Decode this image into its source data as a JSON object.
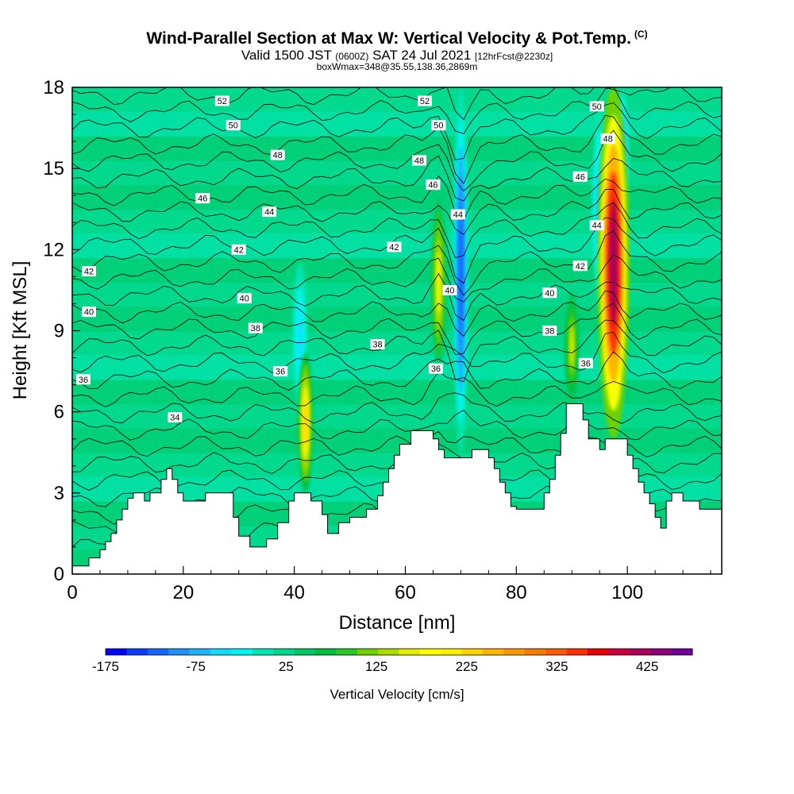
{
  "header": {
    "title": "Wind-Parallel Section at Max W: Vertical Velocity & Pot.Temp.",
    "copyright": "(C)",
    "valid_main": "Valid 1500 JST",
    "valid_z": "(0600Z)",
    "valid_date": "SAT 24 Jul 2021",
    "forecast": "[12hrFcst@2230z]",
    "subtitle": "boxWmax=348@35.55,138.36,2869m"
  },
  "chart_data": {
    "type": "heatmap",
    "title": "Wind-Parallel Section at Max W: Vertical Velocity & Pot.Temp.",
    "xlabel": "Distance [nm]",
    "ylabel": "Height [Kft MSL]",
    "xlim": [
      0,
      117
    ],
    "ylim": [
      0,
      18
    ],
    "x_ticks": [
      0,
      20,
      40,
      60,
      80,
      100
    ],
    "y_ticks": [
      0,
      3,
      6,
      9,
      12,
      15,
      18
    ],
    "colorbar": {
      "label": "Vertical Velocity [cm/s]",
      "range": [
        -175,
        475
      ],
      "tick_values": [
        -175,
        -75,
        25,
        125,
        225,
        325,
        425
      ],
      "colors": [
        "#0000ff",
        "#0a3cff",
        "#1464ff",
        "#1e90ff",
        "#1eb4ff",
        "#14dcff",
        "#00f5f0",
        "#00e6b4",
        "#00d78c",
        "#00c864",
        "#00be3c",
        "#28c828",
        "#6ed200",
        "#aadc00",
        "#e6ec00",
        "#ffff00",
        "#fff000",
        "#ffd200",
        "#ffb400",
        "#ff9600",
        "#ff7800",
        "#ff5a00",
        "#ff2d00",
        "#e60000",
        "#c8003c",
        "#aa005a",
        "#8c0078",
        "#6e0096"
      ]
    },
    "contour_series_name": "Pot.Temp.",
    "contour_labels": [
      {
        "value": "52",
        "x": 27,
        "y": 17.5
      },
      {
        "value": "50",
        "x": 29,
        "y": 16.6
      },
      {
        "value": "48",
        "x": 37,
        "y": 15.5
      },
      {
        "value": "46",
        "x": 23.5,
        "y": 13.9
      },
      {
        "value": "44",
        "x": 35.5,
        "y": 13.4
      },
      {
        "value": "42",
        "x": 30,
        "y": 12.0
      },
      {
        "value": "42",
        "x": 3,
        "y": 11.2
      },
      {
        "value": "40",
        "x": 31,
        "y": 10.2
      },
      {
        "value": "40",
        "x": 3,
        "y": 9.7
      },
      {
        "value": "38",
        "x": 33,
        "y": 9.1
      },
      {
        "value": "36",
        "x": 37.5,
        "y": 7.5
      },
      {
        "value": "36",
        "x": 2,
        "y": 7.2
      },
      {
        "value": "34",
        "x": 18.5,
        "y": 5.8
      },
      {
        "value": "52",
        "x": 63.5,
        "y": 17.5
      },
      {
        "value": "50",
        "x": 66,
        "y": 16.6
      },
      {
        "value": "48",
        "x": 62.5,
        "y": 15.3
      },
      {
        "value": "46",
        "x": 65,
        "y": 14.4
      },
      {
        "value": "44",
        "x": 69.5,
        "y": 13.3
      },
      {
        "value": "42",
        "x": 58,
        "y": 12.1
      },
      {
        "value": "40",
        "x": 68,
        "y": 10.5
      },
      {
        "value": "38",
        "x": 55,
        "y": 8.5
      },
      {
        "value": "36",
        "x": 65.5,
        "y": 7.6
      },
      {
        "value": "50",
        "x": 94.5,
        "y": 17.3
      },
      {
        "value": "48",
        "x": 96.5,
        "y": 16.1
      },
      {
        "value": "46",
        "x": 91.5,
        "y": 14.7
      },
      {
        "value": "44",
        "x": 94.5,
        "y": 12.9
      },
      {
        "value": "42",
        "x": 91.5,
        "y": 11.4
      },
      {
        "value": "40",
        "x": 86,
        "y": 10.4
      },
      {
        "value": "38",
        "x": 86,
        "y": 9.0
      },
      {
        "value": "36",
        "x": 92.5,
        "y": 7.8
      }
    ],
    "contour_levels": [
      34,
      36,
      38,
      40,
      42,
      44,
      46,
      48,
      50,
      52
    ],
    "terrain_kft": [
      [
        0,
        0.3
      ],
      [
        3,
        0.3
      ],
      [
        3,
        0.6
      ],
      [
        5,
        0.6
      ],
      [
        5,
        0.9
      ],
      [
        6,
        0.9
      ],
      [
        6,
        1.2
      ],
      [
        7,
        1.2
      ],
      [
        7,
        1.5
      ],
      [
        8,
        1.5
      ],
      [
        8,
        2.0
      ],
      [
        9,
        2.0
      ],
      [
        9,
        2.4
      ],
      [
        10,
        2.4
      ],
      [
        10,
        2.8
      ],
      [
        11,
        2.8
      ],
      [
        11,
        3.0
      ],
      [
        13,
        3.0
      ],
      [
        13,
        2.7
      ],
      [
        14,
        2.7
      ],
      [
        14,
        3.0
      ],
      [
        16,
        3.0
      ],
      [
        16,
        3.5
      ],
      [
        17,
        3.5
      ],
      [
        17,
        3.9
      ],
      [
        18,
        3.9
      ],
      [
        18,
        3.5
      ],
      [
        19,
        3.5
      ],
      [
        19,
        3.0
      ],
      [
        20,
        3.0
      ],
      [
        20,
        2.7
      ],
      [
        24,
        2.7
      ],
      [
        24,
        3.0
      ],
      [
        29,
        3.0
      ],
      [
        29,
        2.1
      ],
      [
        30,
        2.1
      ],
      [
        30,
        1.4
      ],
      [
        32,
        1.4
      ],
      [
        32,
        1.0
      ],
      [
        35,
        1.0
      ],
      [
        35,
        1.3
      ],
      [
        37,
        1.3
      ],
      [
        37,
        1.9
      ],
      [
        39,
        1.9
      ],
      [
        39,
        2.7
      ],
      [
        40,
        2.7
      ],
      [
        40,
        3.0
      ],
      [
        43,
        3.0
      ],
      [
        43,
        2.7
      ],
      [
        45,
        2.7
      ],
      [
        45,
        2.2
      ],
      [
        46,
        2.2
      ],
      [
        46,
        1.5
      ],
      [
        48,
        1.5
      ],
      [
        48,
        1.9
      ],
      [
        50,
        1.9
      ],
      [
        50,
        2.1
      ],
      [
        53,
        2.1
      ],
      [
        53,
        2.4
      ],
      [
        55,
        2.4
      ],
      [
        55,
        2.9
      ],
      [
        56,
        2.9
      ],
      [
        56,
        3.4
      ],
      [
        57,
        3.4
      ],
      [
        57,
        3.9
      ],
      [
        58,
        3.9
      ],
      [
        58,
        4.4
      ],
      [
        59,
        4.4
      ],
      [
        59,
        4.8
      ],
      [
        61,
        4.8
      ],
      [
        61,
        5.3
      ],
      [
        65,
        5.3
      ],
      [
        65,
        5.0
      ],
      [
        66,
        5.0
      ],
      [
        66,
        4.6
      ],
      [
        67,
        4.6
      ],
      [
        67,
        4.3
      ],
      [
        72,
        4.3
      ],
      [
        72,
        4.6
      ],
      [
        75,
        4.6
      ],
      [
        75,
        4.3
      ],
      [
        76,
        4.3
      ],
      [
        76,
        3.9
      ],
      [
        77,
        3.9
      ],
      [
        77,
        3.4
      ],
      [
        78,
        3.4
      ],
      [
        78,
        3.0
      ],
      [
        79,
        3.0
      ],
      [
        79,
        2.5
      ],
      [
        80,
        2.5
      ],
      [
        80,
        2.4
      ],
      [
        85,
        2.4
      ],
      [
        85,
        3.0
      ],
      [
        86,
        3.0
      ],
      [
        86,
        3.5
      ],
      [
        87,
        3.5
      ],
      [
        87,
        4.4
      ],
      [
        88,
        4.4
      ],
      [
        88,
        5.2
      ],
      [
        89,
        5.2
      ],
      [
        89,
        6.3
      ],
      [
        92,
        6.3
      ],
      [
        92,
        5.7
      ],
      [
        93,
        5.7
      ],
      [
        93,
        5.0
      ],
      [
        95,
        5.0
      ],
      [
        95,
        4.6
      ],
      [
        96,
        4.6
      ],
      [
        96,
        5.0
      ],
      [
        100,
        5.0
      ],
      [
        100,
        4.4
      ],
      [
        101,
        4.4
      ],
      [
        101,
        3.9
      ],
      [
        102,
        3.9
      ],
      [
        102,
        3.4
      ],
      [
        103,
        3.4
      ],
      [
        103,
        3.0
      ],
      [
        104,
        3.0
      ],
      [
        104,
        2.6
      ],
      [
        105,
        2.6
      ],
      [
        105,
        2.1
      ],
      [
        106,
        2.1
      ],
      [
        106,
        1.7
      ],
      [
        107,
        1.7
      ],
      [
        107,
        2.7
      ],
      [
        108,
        2.7
      ],
      [
        108,
        3.0
      ],
      [
        110,
        3.0
      ],
      [
        110,
        2.7
      ],
      [
        113,
        2.7
      ],
      [
        113,
        2.4
      ],
      [
        117,
        2.4
      ]
    ],
    "updrafts": [
      {
        "x": 42,
        "y_range": [
          3.0,
          8.2
        ],
        "peak": 225
      },
      {
        "x": 66,
        "y_range": [
          7.5,
          14.0
        ],
        "peak": 175
      },
      {
        "x": 90,
        "y_range": [
          6.3,
          10.5
        ],
        "peak": 150
      },
      {
        "x": 97.5,
        "y_range": [
          5.0,
          18.0
        ],
        "peak": 425
      }
    ],
    "downdrafts": [
      {
        "x": 41,
        "y_range": [
          6.0,
          11.5
        ],
        "peak": -50
      },
      {
        "x": 70,
        "y_range": [
          4.5,
          18.0
        ],
        "peak": -125
      },
      {
        "x": 95,
        "y_range": [
          10.0,
          17.0
        ],
        "peak": -75
      },
      {
        "x": 99,
        "y_range": [
          13.0,
          18.0
        ],
        "peak": -100
      }
    ]
  },
  "axis": {
    "x_ticks": [
      "0",
      "20",
      "40",
      "60",
      "80",
      "100"
    ],
    "y_ticks": [
      "0",
      "3",
      "6",
      "9",
      "12",
      "15",
      "18"
    ],
    "xlabel": "Distance [nm]",
    "ylabel": "Height [Kft MSL]"
  },
  "colorbar": {
    "ticks": [
      "-175",
      "-75",
      "25",
      "125",
      "225",
      "325",
      "425"
    ],
    "label": "Vertical Velocity [cm/s]"
  }
}
